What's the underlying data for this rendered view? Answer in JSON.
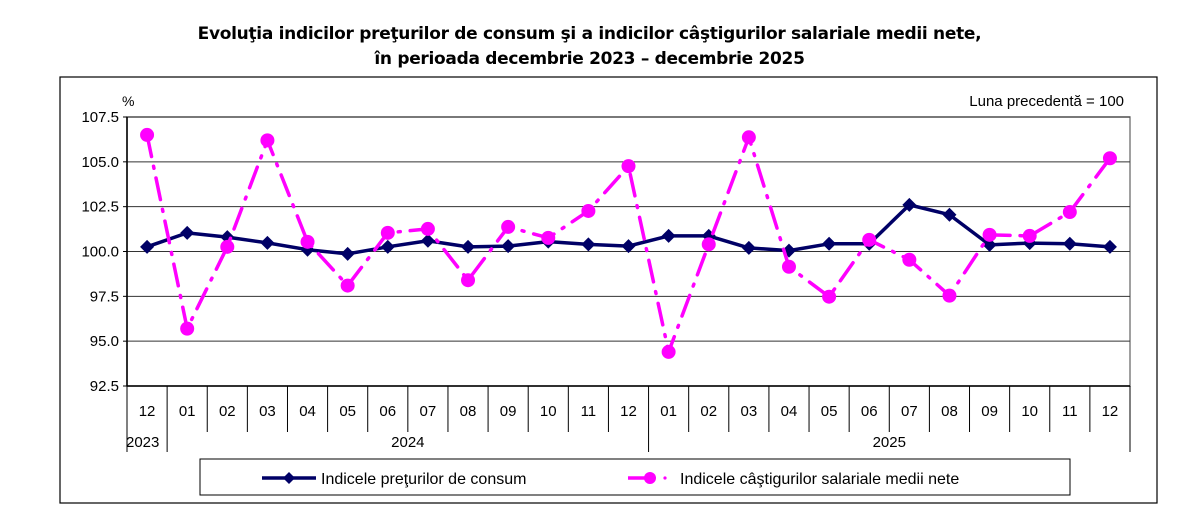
{
  "chart_data": {
    "type": "line",
    "title_line1": "Evoluţia indicilor preţurilor de consum şi a indicilor câştigurilor salariale medii nete,",
    "title_line2": "în perioada decembrie 2023 – decembrie 2025",
    "ylabel": "%",
    "note": "Luna precedentă = 100",
    "ylim": [
      92.5,
      107.5
    ],
    "yticks": [
      "92.5",
      "95.0",
      "97.5",
      "100.0",
      "102.5",
      "105.0",
      "107.5"
    ],
    "grid": true,
    "categories": [
      "12",
      "01",
      "02",
      "03",
      "04",
      "05",
      "06",
      "07",
      "08",
      "09",
      "10",
      "11",
      "12",
      "01",
      "02",
      "03",
      "04",
      "05",
      "06",
      "07",
      "08",
      "09",
      "10",
      "11",
      "12"
    ],
    "years": [
      {
        "label": "2023",
        "from": 0,
        "to": 0
      },
      {
        "label": "2024",
        "from": 1,
        "to": 12
      },
      {
        "label": "2025",
        "from": 13,
        "to": 24
      }
    ],
    "legend_position": "bottom",
    "series": [
      {
        "name": "Indicele preţurilor de consum",
        "color": "#000066",
        "marker": "diamond",
        "values": [
          100.26,
          101.04,
          100.8,
          100.48,
          100.1,
          99.87,
          100.26,
          100.6,
          100.26,
          100.3,
          100.55,
          100.4,
          100.3,
          100.87,
          100.87,
          100.2,
          100.05,
          100.43,
          100.43,
          102.6,
          102.05,
          100.37,
          100.47,
          100.43,
          100.26
        ]
      },
      {
        "name": "Indicele câştigurilor salariale medii nete",
        "color": "#FF00FF",
        "marker": "circle",
        "values": [
          106.5,
          95.7,
          100.26,
          106.2,
          100.54,
          98.1,
          101.04,
          101.26,
          98.4,
          101.37,
          100.76,
          102.26,
          104.76,
          94.4,
          100.4,
          106.37,
          99.15,
          97.48,
          100.65,
          99.54,
          97.54,
          100.93,
          100.87,
          102.2,
          105.2
        ]
      }
    ]
  }
}
